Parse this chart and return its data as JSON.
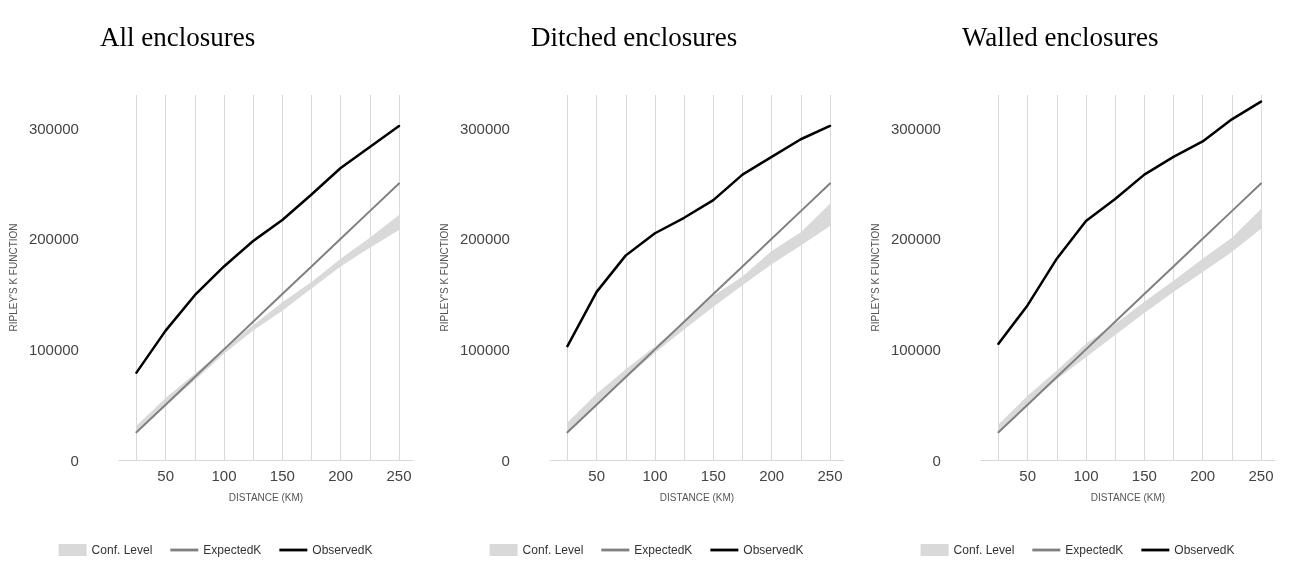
{
  "chart_data": [
    {
      "type": "line",
      "title": "All enclosures",
      "xlabel": "DISTANCE (KM)",
      "ylabel": "RIPLEY'S K FUNCTION",
      "x": [
        25,
        50,
        75,
        100,
        125,
        150,
        175,
        200,
        225,
        250
      ],
      "xlim": [
        10,
        262
      ],
      "xticks": [
        {
          "value": 25,
          "label": null
        },
        50,
        {
          "value": 75,
          "label": null
        },
        100,
        {
          "value": 125,
          "label": null
        },
        150,
        {
          "value": 175,
          "label": null
        },
        200,
        {
          "value": 225,
          "label": null
        },
        250
      ],
      "ylim": [
        0,
        330000
      ],
      "yticks": [
        0,
        100000,
        200000,
        300000
      ],
      "grid": "x",
      "legend": "bottom",
      "marker": "none",
      "series": [
        {
          "name": "Conf. Level",
          "type": "area",
          "color": "#d9d9d9",
          "values": [
            null,
            null,
            null,
            null,
            null,
            null,
            null,
            null,
            null,
            null
          ],
          "lower": [
            26000,
            49000,
            72000,
            96000,
            117000,
            135000,
            155000,
            175000,
            192000,
            208000
          ],
          "upper": [
            31000,
            56000,
            78000,
            100500,
            122000,
            142700,
            161000,
            182000,
            201000,
            221400
          ]
        },
        {
          "name": "ExpectedK",
          "color": "#808080",
          "values": [
            25000,
            50000,
            75000,
            100000,
            125000,
            150000,
            175000,
            200000,
            225000,
            250000
          ]
        },
        {
          "name": "ObservedK",
          "color": "#000000",
          "values": [
            79000,
            117000,
            149000,
            175000,
            198000,
            217000,
            240000,
            264000,
            283000,
            302000
          ]
        }
      ]
    },
    {
      "type": "line",
      "title": "Ditched enclosures",
      "xlabel": "DISTANCE (KM)",
      "ylabel": "RIPLEY'S K FUNCTION",
      "x": [
        25,
        50,
        75,
        100,
        125,
        150,
        175,
        200,
        225,
        250
      ],
      "xlim": [
        10,
        262
      ],
      "xticks": [
        {
          "value": 25,
          "label": null
        },
        50,
        {
          "value": 75,
          "label": null
        },
        100,
        {
          "value": 125,
          "label": null
        },
        150,
        {
          "value": 175,
          "label": null
        },
        200,
        {
          "value": 225,
          "label": null
        },
        250
      ],
      "ylim": [
        0,
        330000
      ],
      "yticks": [
        0,
        100000,
        200000,
        300000
      ],
      "grid": "x",
      "legend": "bottom",
      "marker": "none",
      "series": [
        {
          "name": "Conf. Level",
          "type": "area",
          "color": "#d9d9d9",
          "values": [
            null,
            null,
            null,
            null,
            null,
            null,
            null,
            null,
            null,
            null
          ],
          "lower": [
            25000,
            51000,
            74000,
            97000,
            118000,
            138500,
            158000,
            177000,
            194000,
            211600
          ],
          "upper": [
            34000,
            60000,
            82000,
            102700,
            125000,
            148500,
            166000,
            189000,
            206000,
            231700
          ]
        },
        {
          "name": "ExpectedK",
          "color": "#808080",
          "values": [
            25000,
            50000,
            75000,
            100000,
            125000,
            150000,
            175000,
            200000,
            225000,
            250000
          ]
        },
        {
          "name": "ObservedK",
          "color": "#000000",
          "values": [
            103000,
            152000,
            185000,
            205000,
            219000,
            235000,
            258000,
            274000,
            290000,
            302000
          ]
        }
      ]
    },
    {
      "type": "line",
      "title": "Walled enclosures",
      "xlabel": "DISTANCE (KM)",
      "ylabel": "RIPLEY'S K FUNCTION",
      "x": [
        25,
        50,
        75,
        100,
        125,
        150,
        175,
        200,
        225,
        250
      ],
      "xlim": [
        10,
        262
      ],
      "xticks": [
        {
          "value": 25,
          "label": null
        },
        50,
        {
          "value": 75,
          "label": null
        },
        100,
        {
          "value": 125,
          "label": null
        },
        150,
        {
          "value": 175,
          "label": null
        },
        200,
        {
          "value": 225,
          "label": null
        },
        250
      ],
      "ylim": [
        0,
        330000
      ],
      "yticks": [
        0,
        100000,
        200000,
        300000
      ],
      "grid": "x",
      "legend": "bottom",
      "marker": "none",
      "series": [
        {
          "name": "Conf. Level",
          "type": "area",
          "color": "#d9d9d9",
          "values": [
            null,
            null,
            null,
            null,
            null,
            null,
            null,
            null,
            null,
            null
          ],
          "lower": [
            26000,
            50000,
            73000,
            93000,
            113000,
            133000,
            152000,
            170000,
            188000,
            209000
          ],
          "upper": [
            32000,
            58000,
            81000,
            105000,
            123000,
            143000,
            162000,
            182000,
            201000,
            227000
          ]
        },
        {
          "name": "ExpectedK",
          "color": "#808080",
          "values": [
            25000,
            50000,
            75000,
            100000,
            125000,
            150000,
            175000,
            200000,
            225000,
            250000
          ]
        },
        {
          "name": "ObservedK",
          "color": "#000000",
          "values": [
            105000,
            140000,
            182000,
            216000,
            236000,
            258000,
            274000,
            288000,
            308000,
            324000
          ]
        }
      ]
    }
  ]
}
